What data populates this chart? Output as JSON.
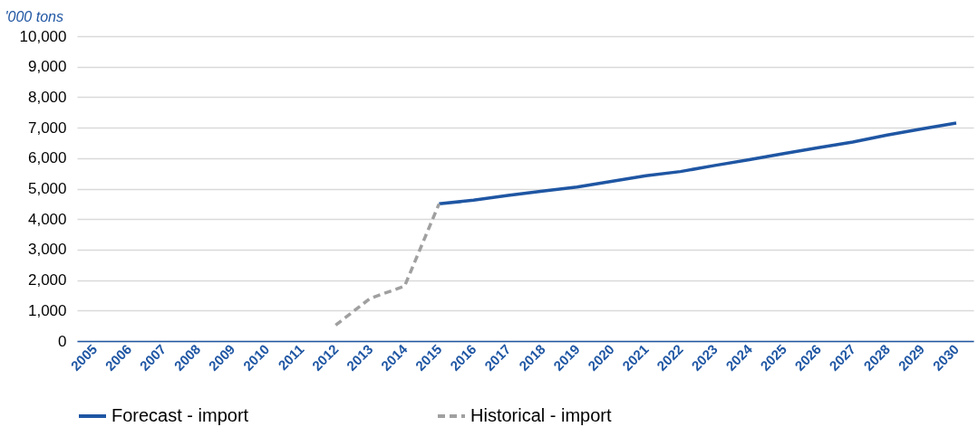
{
  "chart_data": {
    "type": "line",
    "ylabel": "'000 tons",
    "categories": [
      "2005",
      "2006",
      "2007",
      "2008",
      "2009",
      "2010",
      "2011",
      "2012",
      "2013",
      "2014",
      "2015",
      "2016",
      "2017",
      "2018",
      "2019",
      "2020",
      "2021",
      "2022",
      "2023",
      "2024",
      "2025",
      "2026",
      "2027",
      "2028",
      "2029",
      "2030"
    ],
    "series": [
      {
        "name": "Forecast - import",
        "color": "#1f56a3",
        "line_style": "solid",
        "values": [
          null,
          null,
          null,
          null,
          null,
          null,
          null,
          null,
          null,
          null,
          4500,
          4620,
          4780,
          4920,
          5050,
          5240,
          5420,
          5560,
          5760,
          5950,
          6150,
          6340,
          6530,
          6760,
          6960,
          7150
        ]
      },
      {
        "name": "Historical - import",
        "color": "#a0a0a0",
        "line_style": "dashed",
        "values": [
          null,
          null,
          null,
          null,
          null,
          null,
          null,
          520,
          1400,
          1800,
          4500,
          null,
          null,
          null,
          null,
          null,
          null,
          null,
          null,
          null,
          null,
          null,
          null,
          null,
          null,
          null
        ]
      }
    ],
    "ylim": [
      0,
      10000
    ],
    "yticks": [
      0,
      {
        "value": 1000,
        "label": "1,000"
      },
      {
        "value": 2000,
        "label": "2,000"
      },
      {
        "value": 3000,
        "label": "3,000"
      },
      {
        "value": 4000,
        "label": "4,000"
      },
      {
        "value": 5000,
        "label": "5,000"
      },
      {
        "value": 6000,
        "label": "6,000"
      },
      {
        "value": 7000,
        "label": "7,000"
      },
      {
        "value": 8000,
        "label": "8,000"
      },
      {
        "value": 9000,
        "label": "9,000"
      },
      {
        "value": 10000,
        "label": "10,000"
      }
    ],
    "grid": "y",
    "legend": "bottom",
    "marker": "none"
  }
}
